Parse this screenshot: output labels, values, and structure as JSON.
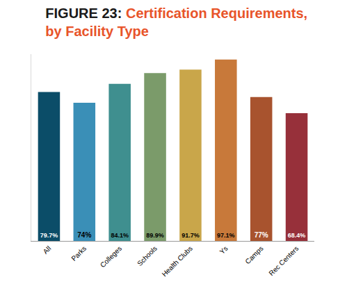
{
  "chart_data": {
    "type": "bar",
    "title": "FIGURE 23: Certification Requirements, by Facility Type",
    "categories": [
      "All",
      "Parks",
      "Colleges",
      "Schools",
      "Health Clubs",
      "Ys",
      "Camps",
      "Rec Centers"
    ],
    "values": [
      79.7,
      74,
      84.1,
      89.9,
      91.7,
      97.1,
      77,
      68.4
    ],
    "value_labels": [
      "79.7%",
      "74%",
      "84.1%",
      "89.9%",
      "91.7%",
      "97.1%",
      "77%",
      "68.4%"
    ],
    "colors": [
      "#0b4d68",
      "#3a8fb7",
      "#3f8f8f",
      "#7b9b6a",
      "#c9a64a",
      "#c8793a",
      "#a8532e",
      "#97303a"
    ],
    "ylim": [
      0,
      100
    ],
    "grid": false,
    "data_labels": true,
    "tick_labels": "x"
  }
}
